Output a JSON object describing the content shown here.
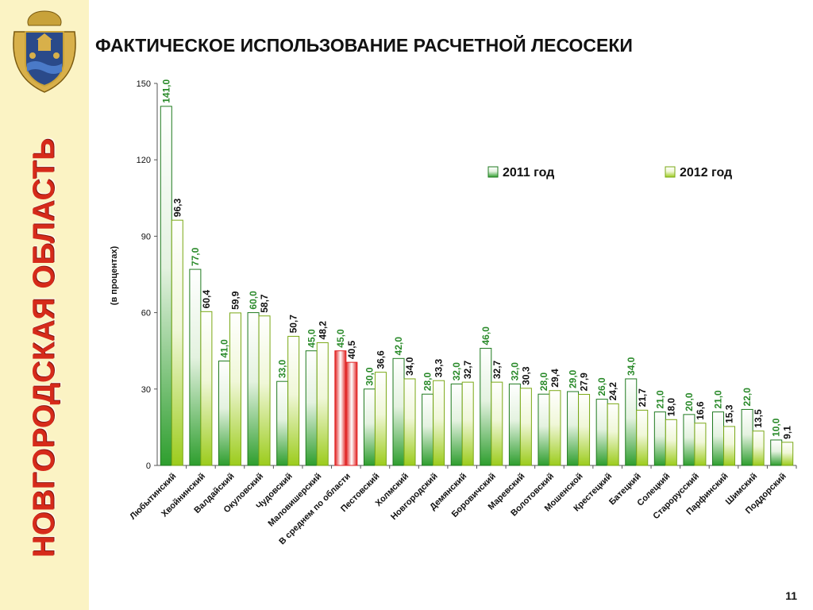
{
  "sidebar": {
    "region_title": "НОВГОРОДСКАЯ ОБЛАСТЬ",
    "emblem_icon": "coat-of-arms-icon"
  },
  "slide": {
    "title": "ФАКТИЧЕСКОЕ ИСПОЛЬЗОВАНИЕ РАСЧЕТНОЙ ЛЕСОСЕКИ",
    "page_number": "11"
  },
  "colors": {
    "series_2011": "#2e9e2e",
    "series_2012": "#9ccc1c",
    "highlight": "#e02020",
    "label_2011": "#2a8a2a",
    "label_2012": "#111111",
    "sidebar_bg": "#fbf3c4",
    "region_text": "#d62a1a"
  },
  "chart_data": {
    "type": "bar",
    "ylabel": "(в процентах)",
    "ylim": [
      0,
      150
    ],
    "yticks": [
      0,
      30,
      60,
      90,
      120,
      150
    ],
    "legend_position": "top-right",
    "categories": [
      "Любытинский",
      "Хвойнинский",
      "Валдайский",
      "Окуловский",
      "Чудовский",
      "Маловишерский",
      "В среднем по области",
      "Пестовский",
      "Холмский",
      "Новгородский",
      "Демянский",
      "Боровичский",
      "Маревский",
      "Волотовский",
      "Мошенской",
      "Крестецкий",
      "Батецкий",
      "Солецкий",
      "Старорусский",
      "Парфинский",
      "Шимский",
      "Поддорский"
    ],
    "highlight_category": "В среднем по области",
    "series": [
      {
        "name": "2011 год",
        "values": [
          141.0,
          77.0,
          41.0,
          60.0,
          33.0,
          45.0,
          45.0,
          30.0,
          42.0,
          28.0,
          32.0,
          46.0,
          32.0,
          28.0,
          29.0,
          26.0,
          34.0,
          21.0,
          20.0,
          21.0,
          22.0,
          10.0
        ],
        "labels": [
          "141,0",
          "77,0",
          "41,0",
          "60,0",
          "33,0",
          "45,0",
          "45,0",
          "30,0",
          "42,0",
          "28,0",
          "32,0",
          "46,0",
          "32,0",
          "28,0",
          "29,0",
          "26,0",
          "34,0",
          "21,0",
          "20,0",
          "21,0",
          "22,0",
          "10,0"
        ]
      },
      {
        "name": "2012 год",
        "values": [
          96.3,
          60.4,
          59.9,
          58.7,
          50.7,
          48.2,
          40.5,
          36.6,
          34.0,
          33.3,
          32.7,
          32.7,
          30.3,
          29.4,
          27.9,
          24.2,
          21.7,
          18.0,
          16.6,
          15.3,
          13.5,
          9.1
        ],
        "labels": [
          "96,3",
          "60,4",
          "59,9",
          "58,7",
          "50,7",
          "48,2",
          "40,5",
          "36,6",
          "34,0",
          "33,3",
          "32,7",
          "32,7",
          "30,3",
          "29,4",
          "27,9",
          "24,2",
          "21,7",
          "18,0",
          "16,6",
          "15,3",
          "13,5",
          "9,1"
        ]
      }
    ]
  }
}
